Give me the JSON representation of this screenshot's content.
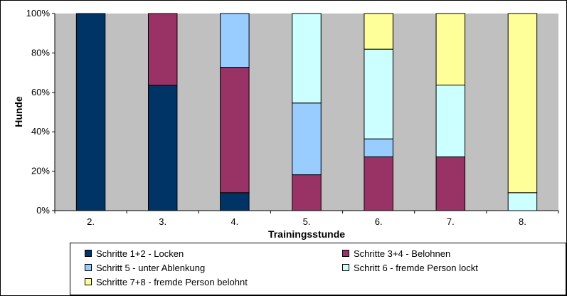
{
  "chart_data": {
    "type": "bar",
    "stacked": true,
    "normalized": true,
    "title": "",
    "xlabel": "Trainingsstunde",
    "ylabel": "Hunde",
    "categories": [
      "2.",
      "3.",
      "4.",
      "5.",
      "6.",
      "7.",
      "8."
    ],
    "ylim": [
      0,
      100
    ],
    "yticks": [
      "0%",
      "20%",
      "40%",
      "60%",
      "80%",
      "100%"
    ],
    "ytick_values": [
      0,
      20,
      40,
      60,
      80,
      100
    ],
    "grid": false,
    "plot_background": "#c0c0c0",
    "legend_position": "bottom",
    "series": [
      {
        "name": "Schritte 1+2 - Locken",
        "color": "#003366",
        "values": [
          100,
          63.6,
          9.1,
          0,
          0,
          0,
          0
        ]
      },
      {
        "name": "Schritte 3+4 - Belohnen",
        "color": "#993366",
        "values": [
          0,
          36.4,
          63.6,
          18.2,
          27.3,
          27.3,
          0
        ]
      },
      {
        "name": "Schritt 5 - unter Ablenkung",
        "color": "#99ccff",
        "values": [
          0,
          0,
          27.3,
          36.4,
          9.1,
          0,
          0
        ]
      },
      {
        "name": "Schritt 6 - fremde Person lockt",
        "color": "#ccffff",
        "values": [
          0,
          0,
          0,
          45.4,
          45.5,
          36.4,
          9.1
        ]
      },
      {
        "name": "Schritte 7+8 - fremde Person belohnt",
        "color": "#ffff99",
        "values": [
          0,
          0,
          0,
          0,
          18.1,
          36.3,
          90.9
        ]
      }
    ]
  }
}
